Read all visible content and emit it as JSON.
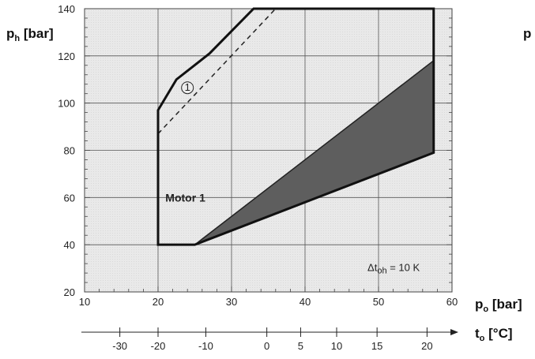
{
  "chart_data": {
    "type": "area",
    "ylabel_main": "p",
    "ylabel_sub": "h",
    "ylabel_unit": " [bar]",
    "xlabel_main": "p",
    "xlabel_sub": "o",
    "xlabel_unit": " [bar]",
    "t_axis_label_main": "t",
    "t_axis_label_sub": "o",
    "t_axis_label_unit": " [°C]",
    "xlim": [
      10,
      60
    ],
    "ylim": [
      20,
      140
    ],
    "x_ticks": [
      10,
      20,
      30,
      40,
      50,
      60
    ],
    "y_ticks": [
      20,
      40,
      60,
      80,
      100,
      120,
      140
    ],
    "grid": true,
    "envelope": {
      "name": "Motor 1",
      "x": [
        20,
        20,
        22.5,
        27,
        33,
        57.5,
        57.5,
        25,
        20
      ],
      "y": [
        40,
        97,
        110,
        121,
        140,
        140,
        79,
        40,
        40
      ]
    },
    "dashed_limit": {
      "marker": "1",
      "x": [
        20,
        36
      ],
      "y": [
        87,
        140
      ]
    },
    "shaded_region": {
      "x": [
        25,
        57.5,
        57.5
      ],
      "y": [
        40,
        118,
        79
      ]
    },
    "annotation_main": "Δt",
    "annotation_sub": "oh",
    "annotation_rest": " = 10 K",
    "t_ticks": [
      {
        "label": "-30",
        "p": 14.8
      },
      {
        "label": "-20",
        "p": 20
      },
      {
        "label": "-10",
        "p": 26.5
      },
      {
        "label": "0",
        "p": 34.8
      },
      {
        "label": "5",
        "p": 39.4
      },
      {
        "label": "10",
        "p": 44.3
      },
      {
        "label": "15",
        "p": 49.8
      },
      {
        "label": "20",
        "p": 56.6
      }
    ],
    "top_right_fragment": "p"
  }
}
